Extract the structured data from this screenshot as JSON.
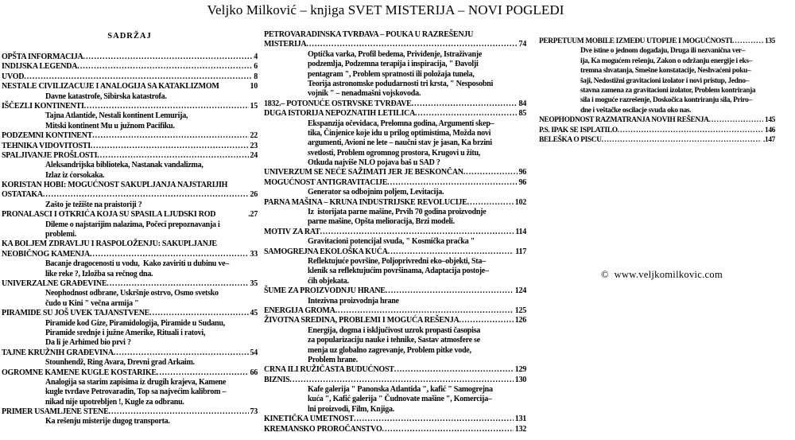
{
  "document_title": "Veljko Milković – knjiga SVET MISTERIJA – NOVI POGLEDI",
  "copyright": "©  www.veljkomilkovic.com",
  "colors": {
    "text": "#000000",
    "background": "#ffffff"
  },
  "toc": {
    "heading": "SADRŽAJ",
    "columns": [
      {
        "lines": [
          {
            "t": "OPŠTA INFORMACIJA",
            "k": "h",
            "p": "4"
          },
          {
            "t": "INDIJSKA LEGENDA",
            "k": "h",
            "p": "6"
          },
          {
            "t": "UVOD",
            "k": "h",
            "p": "8"
          },
          {
            "t": "NESTALE CIVILIZACUJE I ANALOGIJA SA KATAKLIZMOM",
            "k": "h",
            "p": "10",
            "d": false
          },
          {
            "t": "Davne katastrofe, Sibirska katastrofa.",
            "k": "s"
          },
          {
            "t": "IŠČEZLI KONTINENTI",
            "k": "h",
            "p": "15"
          },
          {
            "t": "Tajna Atlantide, Nestali kontinent Lemurija,",
            "k": "s"
          },
          {
            "t": "Mitski kontinent Mu u južnom Pacifiku.",
            "k": "s"
          },
          {
            "t": "PODZEMNI KONTINENT",
            "k": "h",
            "p": "22"
          },
          {
            "t": "TEHNIKA VIDOVITOSTI",
            "k": "h",
            "p": "23"
          },
          {
            "t": "SPALJIVANJE PROŠLOSTI",
            "k": "h",
            "p": "24"
          },
          {
            "t": "Aleksandrijska biblioteka, Nastanak vandalizma,",
            "k": "s"
          },
          {
            "t": "Izlaz iz ćorsokaka.",
            "k": "s"
          },
          {
            "t": "KORISTAN HOBI: MOGUĆNOST SAKUPLJANJA NAJSTARIJIH",
            "k": "h"
          },
          {
            "t": "OSTATAKA",
            "k": "h",
            "p": "26"
          },
          {
            "t": "Zašto je težište na praistoriji ?",
            "k": "s"
          },
          {
            "t": "PRONALASCI I OTKRIĆA KOJA SU SPASILA LJUDSKI ROD",
            "k": "h",
            "p": ".27",
            "d": false
          },
          {
            "t": "Dileme o najstarijim nalazima, Počeci prepoznavanja i",
            "k": "s"
          },
          {
            "t": "problemi.",
            "k": "s"
          },
          {
            "t": "KA BOLJEM ZDRAVLJU I RASPOLOŽENJU: SAKUPLJANJE",
            "k": "h"
          },
          {
            "t": "NEOBIČNOG KAMENJA",
            "k": "h",
            "p": "33"
          },
          {
            "t": "Bacanje dragocenosti u vodu,  Kako zaviriti u dubinu ve–",
            "k": "s"
          },
          {
            "t": "like reke ?, Izložba sa rečnog dna.",
            "k": "s"
          },
          {
            "t": "UNIVERZALNE GRAĐEVINE",
            "k": "h",
            "p": "35"
          },
          {
            "t": "Neophodnost odbrane, Uskršnje ostrvo, Osmo svetsko",
            "k": "s"
          },
          {
            "t": "čudo u Kini \" večna armija \"",
            "k": "s"
          },
          {
            "t": "PIRAMIDE SU JOŠ UVEK TAJANSTVENE",
            "k": "h",
            "p": "45"
          },
          {
            "t": "Piramide kod Gize, Piramidologija, Piramide u Sudanu,",
            "k": "s"
          },
          {
            "t": "Piramide srednje i južne Amerike, Rituali i ratovi,",
            "k": "s"
          },
          {
            "t": "Da li je Arhimed bio prvi ?",
            "k": "s"
          },
          {
            "t": "TAJNE KRUŽNIH GRAĐEVINA",
            "k": "h",
            "p": "54"
          },
          {
            "t": "Stounhendž, Ring Avara, Drevni grad Arkaim.",
            "k": "s"
          },
          {
            "t": "OGROMNE KAMENE KUGLE KOSTARIKE",
            "k": "h",
            "p": "66"
          },
          {
            "t": "Analogija sa starim zapisima iz drugih krajeva, Kamene",
            "k": "s"
          },
          {
            "t": "kugle tvrđave Petrovaradin, Top sa najvećim kalibrom –",
            "k": "s"
          },
          {
            "t": "nikad nije upotrebljen !, Kugle za odbranu.",
            "k": "s"
          },
          {
            "t": "PRIMER USAMLJENE STENE",
            "k": "h",
            "p": "73"
          },
          {
            "t": "Ka rešenju misterije dugog transporta.",
            "k": "s"
          }
        ]
      },
      {
        "lines": [
          {
            "t": "PETROVARADINSKA TVRĐAVA – POUKA U RAZREŠENJU",
            "k": "h"
          },
          {
            "t": "MISTERIJA",
            "k": "h",
            "p": "74"
          },
          {
            "t": "Optička varka, Profil bedema, Priviđenje, Istraživanje",
            "k": "s"
          },
          {
            "t": "podzemlja, Podzemna terapija i inspiracija, \" Đavolji",
            "k": "s"
          },
          {
            "t": "pentagram \", Problem spratnosti ili položaja tunela,",
            "k": "s"
          },
          {
            "t": "Teorija astronomske podudarnosti tri krsta, \" Nesposobni",
            "k": "s"
          },
          {
            "t": "vojnik \" – nenadmašni vojskovođa.",
            "k": "s"
          },
          {
            "t": "1832.– POTONUĆE OSTRVSKE TVRĐAVE",
            "k": "h",
            "p": "84"
          },
          {
            "t": "DUGA ISTORIJA NEPOZNATIH LETILICA",
            "k": "h",
            "p": "85"
          },
          {
            "t": "Ekspanzija očevidaca, Prelomna godina, Argumenti skep–",
            "k": "s"
          },
          {
            "t": "tika, Činjenice koje idu u prilog optimistima, Možda novi",
            "k": "s"
          },
          {
            "t": "argumenti, Avioni ne lete – naučni stav je jasan, Ka brzini",
            "k": "s"
          },
          {
            "t": "svetlosti, Problem ogromnog prostora, Krugovi u žitu,",
            "k": "s"
          },
          {
            "t": "Otkuda najviše NLO pojava baš u SAD ?",
            "k": "s"
          },
          {
            "t": "UNIVERZUM SE NEĆE SAŽIMATI JER JE BESKONČAN",
            "k": "h",
            "p": "96"
          },
          {
            "t": "MOGUĆNOST ANTIGRAVITACIJE",
            "k": "h",
            "p": "96"
          },
          {
            "t": "Generator sa odbojnim poljem, Levitacija.",
            "k": "s"
          },
          {
            "t": "PARNA MAŠINA – KRUNA INDUSTRIJSKE REVOLUCIJE",
            "k": "h",
            "p": "102"
          },
          {
            "t": "Iz  istorijata parne mašine, Prvih 70 godina proizvodnje",
            "k": "s"
          },
          {
            "t": "parne mašine, Opšta melioracija, Brzi modeli.",
            "k": "s"
          },
          {
            "t": "MOTIV ZA RAT",
            "k": "h",
            "p": "114"
          },
          {
            "t": "Gravitacioni potencijal svuda, \" Kosmička praćka \"",
            "k": "s"
          },
          {
            "t": "SAMOGREJNA EKOLOŠKA KUĆA",
            "k": "h",
            "p": "117"
          },
          {
            "t": "Reflektujuće površine, Poljoprivredni eko–objekti, Sta–",
            "k": "s"
          },
          {
            "t": "klenik sa reflektujućim površinama, Adaptacija postoje–",
            "k": "s"
          },
          {
            "t": "ćih objekata.",
            "k": "s"
          },
          {
            "t": "ŠUME ZA PROIZVODNJU HRANE",
            "k": "h",
            "p": "124"
          },
          {
            "t": "Intezivna proizvodnja hrane",
            "k": "s"
          },
          {
            "t": "ENERGIJA GROMA",
            "k": "h",
            "p": "125"
          },
          {
            "t": "ŽIVOTNA SREDINA, PROBLEMI I MOGUĆA REŠENJA",
            "k": "h",
            "p": "126"
          },
          {
            "t": "Energija, dogma i isključivost uzrok propasti časopisa",
            "k": "s"
          },
          {
            "t": "za popularizaciju nauke i tehnike, Sastav atmosfere se",
            "k": "s"
          },
          {
            "t": "menja uz globalno zagrevanje, Problem pitke vode,",
            "k": "s"
          },
          {
            "t": "Problem hrane.",
            "k": "s"
          },
          {
            "t": "CRNA ILI RUŽIČASTA BUDUĆNOST",
            "k": "h",
            "p": "129"
          },
          {
            "t": "BIZNIS",
            "k": "h",
            "p": "130"
          },
          {
            "t": "Kafe galerija \" Panonska Atlantida \", kafić \" Samogrejna",
            "k": "s"
          },
          {
            "t": "kuća \", Kafić galerija \" Čudnovate mašine \", Komercija–",
            "k": "s"
          },
          {
            "t": "lni proizvodi, Film, Knjiga.",
            "k": "s"
          },
          {
            "t": "KINETIČKA UMETNOST",
            "k": "h",
            "p": "131"
          },
          {
            "t": "KREMANSKO PROROČANSTVO",
            "k": "h",
            "p": "132"
          }
        ]
      },
      {
        "lines": [
          {
            "t": "PERPETUUM MOBILE IZMEĐU UTOPIJE I MOGUĆNOSTI",
            "k": "h",
            "p": "135"
          },
          {
            "t": "Dve istine o jednom događaju, Druga ili nezvanična ver–",
            "k": "s"
          },
          {
            "t": "ija, Ka mogućem rešenju, Zakon o održanju energije i eks–",
            "k": "s"
          },
          {
            "t": "tremna shvatanja, Smešne konstatacije, Neshvaćeni poku–",
            "k": "s"
          },
          {
            "t": "šaji, Nedostižni gravitacioni izolator i novi pristup, Jedno–",
            "k": "s"
          },
          {
            "t": "stavna zamena za gravitacioni izolator, Problem kontriranja",
            "k": "s"
          },
          {
            "t": "sila i moguće razrešenje, Doskočica kontriranju sila, Priro–",
            "k": "s"
          },
          {
            "t": "dne i veštačke oscilacje svuda oko nas.",
            "k": "s"
          },
          {
            "t": "NEOPHODNOST RAZMATRANJA NOVIH REŠENJA",
            "k": "h",
            "p": "145"
          },
          {
            "t": "P.S. IPAK SE ISPLATILO",
            "k": "h",
            "p": "146"
          },
          {
            "t": "BELEŠKA O PISCU",
            "k": "h",
            "p": ".147"
          }
        ]
      }
    ]
  }
}
